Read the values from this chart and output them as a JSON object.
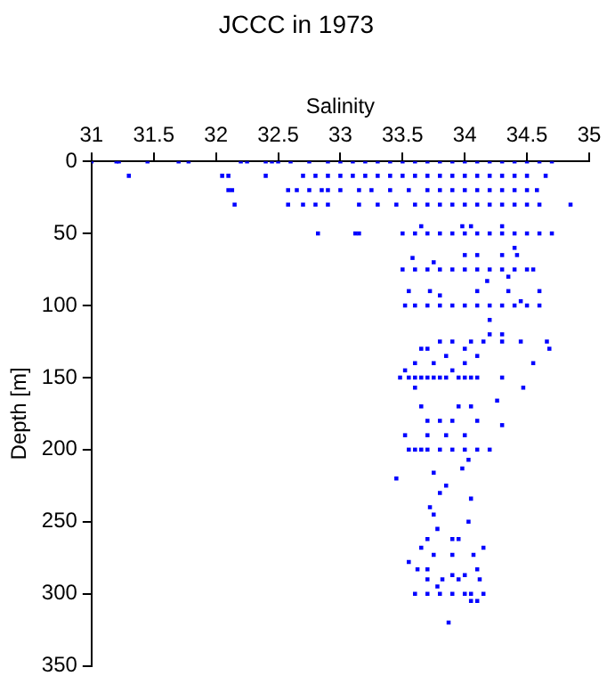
{
  "chart_data": {
    "type": "scatter",
    "title": "JCCC in 1973",
    "xlabel": "Salinity",
    "ylabel": "Depth [m]",
    "xlim": [
      31,
      35
    ],
    "xticks": [
      31,
      31.5,
      32,
      32.5,
      33,
      33.5,
      34,
      34.5,
      35
    ],
    "ylim": [
      350,
      0
    ],
    "yticks": [
      0,
      50,
      100,
      150,
      200,
      250,
      300,
      350
    ],
    "grid": false,
    "marker": "square",
    "series": [
      {
        "color": "#0000ff",
        "x": [
          31.0,
          31.2,
          31.22,
          31.45,
          31.7,
          31.78,
          32.2,
          32.25,
          32.4,
          32.45,
          32.5,
          32.6,
          32.75,
          32.9,
          33.0,
          33.1,
          33.2,
          33.3,
          33.4,
          33.5,
          33.6,
          33.7,
          33.8,
          33.9,
          34.0,
          34.1,
          34.2,
          34.3,
          34.4,
          34.5,
          34.6,
          34.7,
          31.3,
          32.05,
          32.1,
          32.4,
          32.7,
          32.8,
          32.9,
          33.0,
          33.1,
          33.2,
          33.3,
          33.4,
          33.5,
          33.6,
          33.7,
          33.8,
          33.9,
          34.0,
          34.1,
          34.2,
          34.3,
          34.4,
          34.5,
          34.65,
          32.1,
          32.13,
          32.58,
          32.65,
          32.75,
          32.85,
          32.9,
          33.0,
          33.15,
          33.25,
          33.4,
          33.55,
          33.7,
          33.8,
          33.9,
          34.0,
          34.1,
          34.2,
          34.3,
          34.4,
          34.5,
          34.58,
          32.15,
          32.58,
          32.7,
          32.8,
          32.9,
          33.15,
          33.3,
          33.45,
          33.6,
          33.7,
          33.8,
          33.9,
          34.0,
          34.1,
          34.2,
          34.3,
          34.4,
          34.5,
          34.6,
          34.85,
          32.82,
          33.12,
          33.15,
          33.5,
          33.6,
          33.7,
          33.8,
          33.9,
          34.0,
          34.1,
          34.2,
          34.3,
          34.4,
          34.5,
          34.6,
          34.7,
          33.65,
          33.98,
          34.05,
          34.3,
          33.5,
          33.6,
          33.7,
          33.8,
          33.9,
          34.0,
          34.1,
          34.2,
          34.3,
          34.4,
          34.5,
          34.55,
          33.58,
          33.75,
          34.0,
          34.1,
          34.3,
          34.42,
          34.4,
          34.35,
          33.52,
          33.6,
          33.7,
          33.8,
          33.9,
          34.0,
          34.1,
          34.2,
          34.3,
          34.4,
          34.5,
          34.6,
          33.55,
          33.72,
          34.1,
          34.35,
          34.6,
          33.8,
          34.18,
          34.2,
          34.45,
          33.8,
          33.9,
          34.05,
          34.15,
          34.3,
          34.45,
          34.66,
          34.2,
          34.3,
          33.65,
          33.7,
          34.0,
          34.68,
          33.85,
          34.1,
          33.48,
          33.55,
          33.6,
          33.65,
          33.7,
          33.75,
          33.8,
          33.85,
          33.95,
          34.0,
          34.05,
          34.1,
          34.3,
          33.6,
          33.75,
          34.0,
          34.55,
          33.52,
          33.9,
          33.6,
          34.47,
          34.26,
          34.3,
          33.55,
          33.6,
          33.65,
          33.7,
          33.8,
          33.9,
          34.0,
          34.1,
          34.2,
          33.65,
          33.95,
          34.05,
          33.7,
          33.8,
          33.9,
          34.1,
          33.52,
          33.7,
          33.85,
          34.0,
          34.03,
          33.98,
          33.45,
          33.75,
          33.85,
          33.8,
          34.05,
          33.72,
          33.75,
          34.03,
          33.78,
          33.7,
          33.9,
          33.95,
          33.65,
          34.15,
          33.75,
          33.9,
          34.07,
          33.55,
          33.62,
          33.7,
          34.1,
          33.9,
          34.0,
          33.7,
          33.82,
          33.95,
          34.12,
          33.78,
          33.6,
          33.7,
          33.8,
          33.9,
          34.0,
          34.05,
          34.15,
          34.05,
          34.1,
          33.87
        ],
        "values": [
          0,
          0,
          0,
          0,
          0,
          0,
          0,
          0,
          0,
          0,
          0,
          0,
          0,
          0,
          0,
          0,
          0,
          0,
          0,
          0,
          0,
          0,
          0,
          0,
          0,
          0,
          0,
          0,
          0,
          0,
          0,
          0,
          10,
          10,
          10,
          10,
          10,
          10,
          10,
          10,
          10,
          10,
          10,
          10,
          10,
          10,
          10,
          10,
          10,
          10,
          10,
          10,
          10,
          10,
          10,
          10,
          20,
          20,
          20,
          20,
          20,
          20,
          20,
          20,
          20,
          20,
          20,
          20,
          20,
          20,
          20,
          20,
          20,
          20,
          20,
          20,
          20,
          20,
          30,
          30,
          30,
          30,
          30,
          30,
          30,
          30,
          30,
          30,
          30,
          30,
          30,
          30,
          30,
          30,
          30,
          30,
          30,
          30,
          50,
          50,
          50,
          50,
          50,
          50,
          50,
          50,
          50,
          50,
          50,
          50,
          50,
          50,
          50,
          50,
          45,
          45,
          45,
          45,
          75,
          75,
          75,
          75,
          75,
          75,
          75,
          75,
          75,
          75,
          75,
          75,
          67,
          70,
          65,
          65,
          65,
          65,
          60,
          80,
          100,
          100,
          100,
          100,
          100,
          100,
          100,
          100,
          100,
          100,
          100,
          100,
          90,
          90,
          90,
          90,
          90,
          93,
          83,
          110,
          97,
          125,
          125,
          125,
          125,
          125,
          125,
          125,
          120,
          120,
          130,
          130,
          130,
          130,
          135,
          135,
          150,
          150,
          150,
          150,
          150,
          150,
          150,
          150,
          150,
          150,
          150,
          150,
          150,
          140,
          140,
          140,
          140,
          145,
          145,
          157,
          157,
          166,
          183,
          200,
          200,
          200,
          200,
          200,
          200,
          200,
          200,
          200,
          170,
          170,
          170,
          180,
          180,
          180,
          180,
          190,
          190,
          190,
          190,
          207,
          213,
          220,
          216,
          225,
          230,
          234,
          240,
          245,
          250,
          255,
          262,
          262,
          262,
          268,
          268,
          273,
          273,
          273,
          278,
          283,
          283,
          283,
          287,
          287,
          290,
          290,
          290,
          290,
          295,
          300,
          300,
          300,
          300,
          300,
          300,
          300,
          305,
          305,
          320
        ]
      }
    ]
  }
}
